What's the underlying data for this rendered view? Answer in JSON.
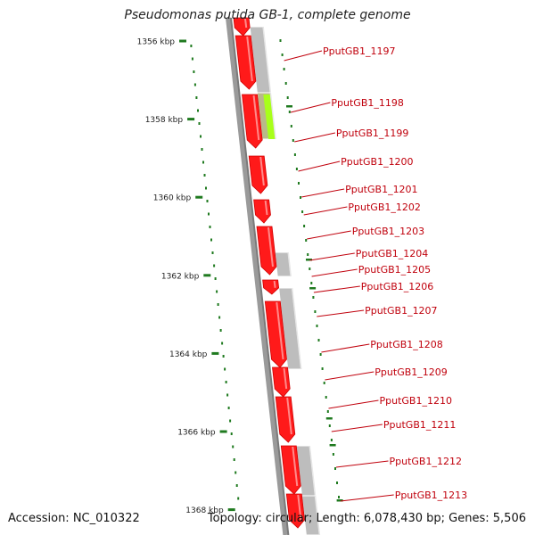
{
  "map": {
    "title": "Pseudomonas putida GB-1, complete genome",
    "accession": "Accession: NC_010322",
    "summary": "Topology: circular; Length: 6,078,430 bp; Genes: 5,506",
    "colors": {
      "forward_gene": "#ff1a1a",
      "reverse_gene": "#bdbdbd",
      "highlight_gene": "#a8ff1a",
      "label": "#c0000c",
      "tick": "#1f7a1f",
      "backbone": "#7a7a7a"
    },
    "kbp_ticks": [
      {
        "label": "1356 kbp",
        "pos_kbp": 1356
      },
      {
        "label": "1358 kbp",
        "pos_kbp": 1358
      },
      {
        "label": "1360 kbp",
        "pos_kbp": 1360
      },
      {
        "label": "1362 kbp",
        "pos_kbp": 1362
      },
      {
        "label": "1364 kbp",
        "pos_kbp": 1364
      },
      {
        "label": "1366 kbp",
        "pos_kbp": 1366
      },
      {
        "label": "1368 kbp",
        "pos_kbp": 1368
      }
    ],
    "gene_labels": [
      "PputGB1_1197",
      "PputGB1_1198",
      "PputGB1_1199",
      "PputGB1_1200",
      "PputGB1_1201",
      "PputGB1_1202",
      "PputGB1_1203",
      "PputGB1_1204",
      "PputGB1_1205",
      "PputGB1_1206",
      "PputGB1_1207",
      "PputGB1_1208",
      "PputGB1_1209",
      "PputGB1_1210",
      "PputGB1_1211",
      "PputGB1_1212",
      "PputGB1_1213"
    ]
  }
}
